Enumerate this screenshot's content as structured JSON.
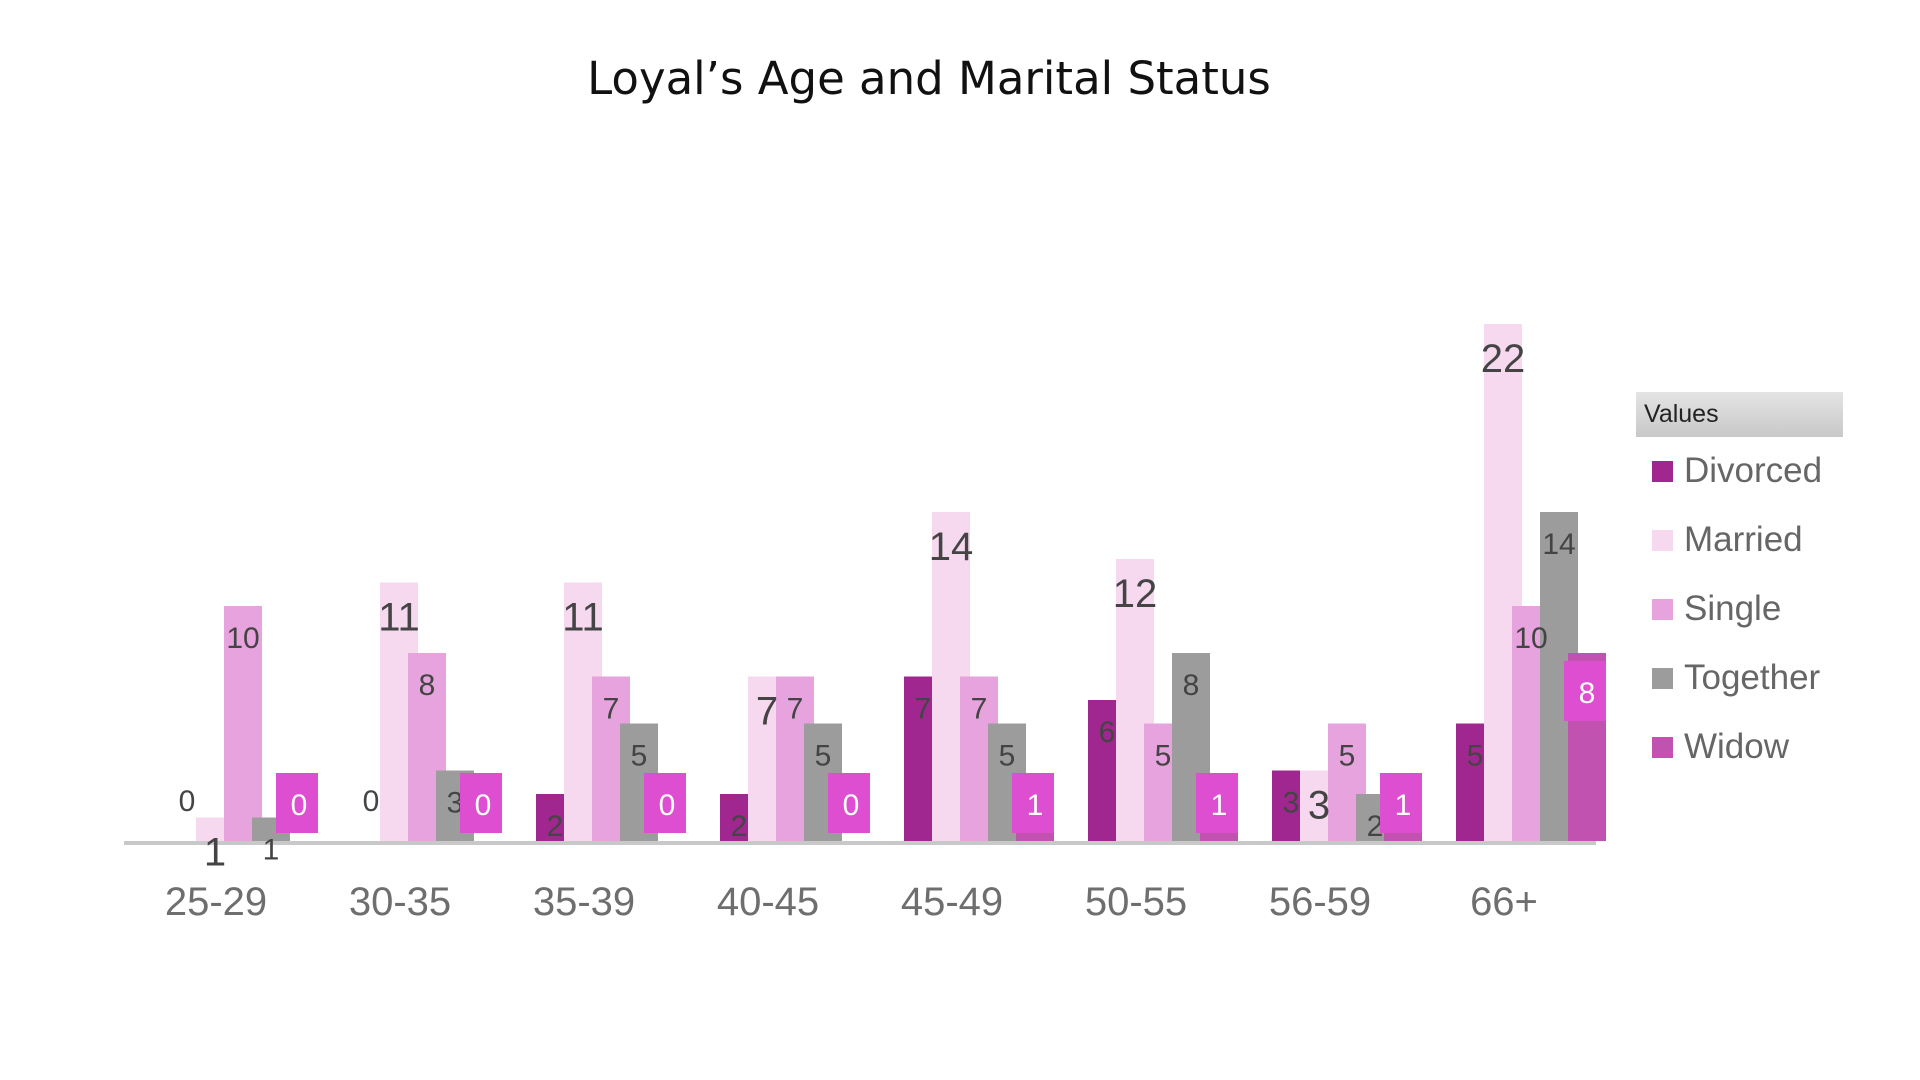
{
  "chart_data": {
    "type": "bar",
    "title": "Loyal’s Age and Marital Status",
    "categories": [
      "25-29",
      "30-35",
      "35-39",
      "40-45",
      "45-49",
      "50-55",
      "56-59",
      "66+"
    ],
    "series": [
      {
        "name": "Divorced",
        "values": [
          0,
          0,
          2,
          2,
          7,
          6,
          3,
          5
        ]
      },
      {
        "name": "Married",
        "values": [
          1,
          11,
          11,
          7,
          14,
          12,
          3,
          22
        ]
      },
      {
        "name": "Single",
        "values": [
          10,
          8,
          7,
          7,
          7,
          5,
          5,
          10
        ]
      },
      {
        "name": "Together",
        "values": [
          1,
          3,
          5,
          5,
          5,
          8,
          2,
          14
        ]
      },
      {
        "name": "Widow",
        "values": [
          0,
          0,
          0,
          0,
          1,
          1,
          1,
          8
        ]
      }
    ],
    "colors": {
      "Divorced": "#a0278f",
      "Married": "#f6d8ef",
      "Single": "#e6a3dd",
      "Together": "#9c9c9c",
      "Widow": "#c152b0",
      "label_box": "#de4ed0"
    },
    "ylim": [
      0,
      22
    ],
    "grid": false,
    "legend_title": "Values",
    "legend_position": "right"
  }
}
